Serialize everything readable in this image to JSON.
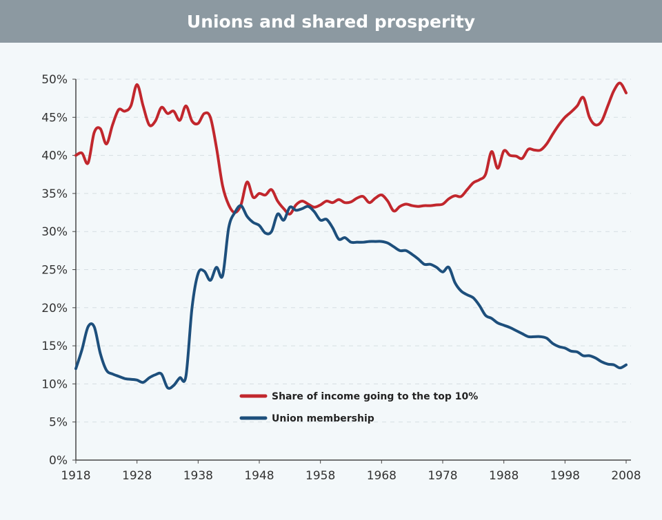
{
  "chart_data": {
    "type": "line",
    "title": "Unions and shared prosperity",
    "xlabel": "",
    "ylabel": "",
    "xlim": [
      1918,
      2008
    ],
    "ylim": [
      0,
      50
    ],
    "grid": true,
    "x_ticks": [
      "1918",
      "1928",
      "1938",
      "1948",
      "1958",
      "1968",
      "1978",
      "1988",
      "1998",
      "2008"
    ],
    "y_ticks": [
      "0%",
      "5%",
      "10%",
      "15%",
      "20%",
      "25%",
      "30%",
      "35%",
      "40%",
      "45%",
      "50%"
    ],
    "legend_position": "bottom-center",
    "start_year": 1918,
    "series": [
      {
        "name": "Share of income going to the top 10%",
        "color": "#c1272d",
        "values": [
          40,
          40.3,
          39,
          43,
          43.5,
          41.5,
          44,
          46,
          45.8,
          46.5,
          49.3,
          46.5,
          44,
          44.5,
          46.3,
          45.5,
          45.8,
          44.6,
          46.5,
          44.5,
          44.2,
          45.5,
          45,
          41,
          36,
          33.5,
          32.5,
          33.5,
          36.5,
          34.5,
          35,
          34.8,
          35.5,
          34,
          33,
          32.3,
          33.5,
          34,
          33.6,
          33.2,
          33.5,
          34,
          33.8,
          34.2,
          33.8,
          33.9,
          34.4,
          34.6,
          33.8,
          34.4,
          34.8,
          34,
          32.7,
          33.3,
          33.6,
          33.4,
          33.3,
          33.4,
          33.4,
          33.5,
          33.6,
          34.3,
          34.7,
          34.6,
          35.5,
          36.4,
          36.8,
          37.5,
          40.5,
          38.3,
          40.6,
          40,
          39.9,
          39.6,
          40.8,
          40.7,
          40.7,
          41.5,
          42.8,
          44,
          45,
          45.7,
          46.5,
          47.6,
          45,
          44,
          44.5,
          46.5,
          48.5,
          49.5,
          48.2
        ]
      },
      {
        "name": "Union membership",
        "color": "#1d4f7c",
        "values": [
          12,
          14.5,
          17.5,
          17.5,
          14,
          11.8,
          11.3,
          11,
          10.7,
          10.6,
          10.5,
          10.2,
          10.8,
          11.2,
          11.3,
          9.5,
          9.8,
          10.8,
          11,
          20,
          24.5,
          24.8,
          23.6,
          25.3,
          24.2,
          30.5,
          32.5,
          33.4,
          32,
          31.2,
          30.8,
          29.8,
          30,
          32.3,
          31.5,
          33.2,
          32.8,
          33,
          33.3,
          32.6,
          31.5,
          31.6,
          30.5,
          29,
          29.2,
          28.6,
          28.6,
          28.6,
          28.7,
          28.7,
          28.7,
          28.5,
          28,
          27.5,
          27.5,
          27,
          26.4,
          25.7,
          25.7,
          25.3,
          24.7,
          25.3,
          23.3,
          22.2,
          21.7,
          21.3,
          20.3,
          19,
          18.6,
          18,
          17.7,
          17.4,
          17,
          16.6,
          16.2,
          16.2,
          16.2,
          16,
          15.3,
          14.9,
          14.7,
          14.3,
          14.2,
          13.7,
          13.7,
          13.4,
          12.9,
          12.6,
          12.5,
          12.1,
          12.5
        ]
      }
    ]
  }
}
